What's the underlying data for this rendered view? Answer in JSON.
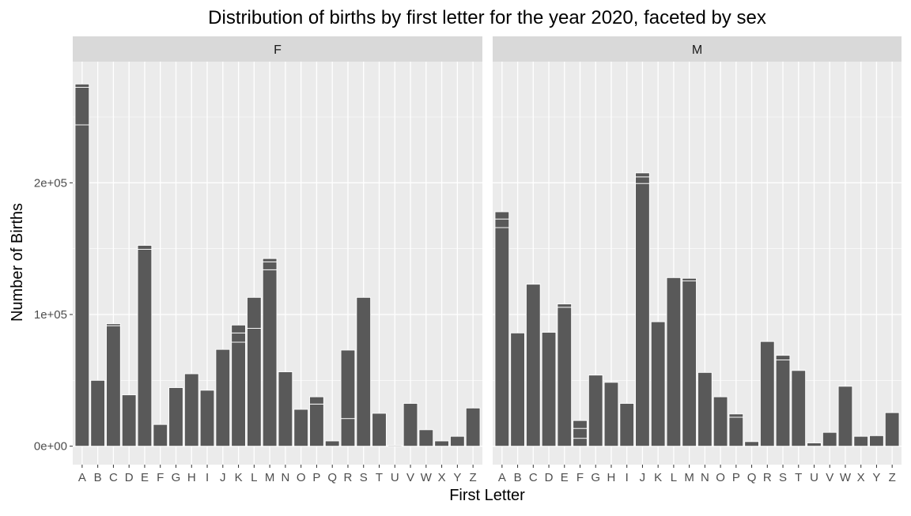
{
  "chart_data": {
    "type": "bar",
    "title": "Distribution of births by first letter for the year 2020, faceted by sex",
    "xlabel": "First Letter",
    "ylabel": "Number of Births",
    "ylim": [
      -14000,
      292000
    ],
    "y_ticks": [
      0,
      100000,
      200000
    ],
    "y_tick_labels": [
      "0e+00",
      "1e+05",
      "2e+05"
    ],
    "grid": true,
    "stacked": true,
    "categories": [
      "A",
      "B",
      "C",
      "D",
      "E",
      "F",
      "G",
      "H",
      "I",
      "J",
      "K",
      "L",
      "M",
      "N",
      "O",
      "P",
      "Q",
      "R",
      "S",
      "T",
      "U",
      "V",
      "W",
      "X",
      "Y",
      "Z"
    ],
    "colors": {
      "bar": "#595959",
      "panel": "#ebebeb",
      "strip": "#d9d9d9",
      "grid": "#ffffff",
      "axis_text": "#4d4d4d"
    },
    "facets": [
      {
        "label": "F",
        "segments": [
          [
            244000,
            28500,
            2500
          ],
          [
            50000
          ],
          [
            91500,
            1500
          ],
          [
            39000
          ],
          [
            149500,
            3000
          ],
          [
            16500
          ],
          [
            44500
          ],
          [
            55000
          ],
          [
            42500
          ],
          [
            73500
          ],
          [
            79000,
            7000,
            6000
          ],
          [
            89500,
            23500
          ],
          [
            134000,
            6000,
            2500
          ],
          [
            56500
          ],
          [
            28000
          ],
          [
            32000,
            5500
          ],
          [
            4000
          ],
          [
            21000,
            52000
          ],
          [
            113000
          ],
          [
            25000
          ],
          [
            700
          ],
          [
            32500
          ],
          [
            12500
          ],
          [
            4000
          ],
          [
            7500
          ],
          [
            29000
          ]
        ]
      },
      {
        "label": "M",
        "segments": [
          [
            166000,
            6500,
            5500
          ],
          [
            86000
          ],
          [
            123000
          ],
          [
            86500
          ],
          [
            105500,
            2500
          ],
          [
            6000,
            7500,
            6000
          ],
          [
            54000
          ],
          [
            48500
          ],
          [
            32500
          ],
          [
            199500,
            5000,
            3000
          ],
          [
            94500
          ],
          [
            128000
          ],
          [
            125500,
            2000
          ],
          [
            56000
          ],
          [
            37500
          ],
          [
            22000,
            2500
          ],
          [
            3500
          ],
          [
            79500
          ],
          [
            65500,
            3500
          ],
          [
            57500
          ],
          [
            2500
          ],
          [
            10500
          ],
          [
            45500
          ],
          [
            7500
          ],
          [
            8000
          ],
          [
            25500
          ]
        ]
      }
    ]
  }
}
